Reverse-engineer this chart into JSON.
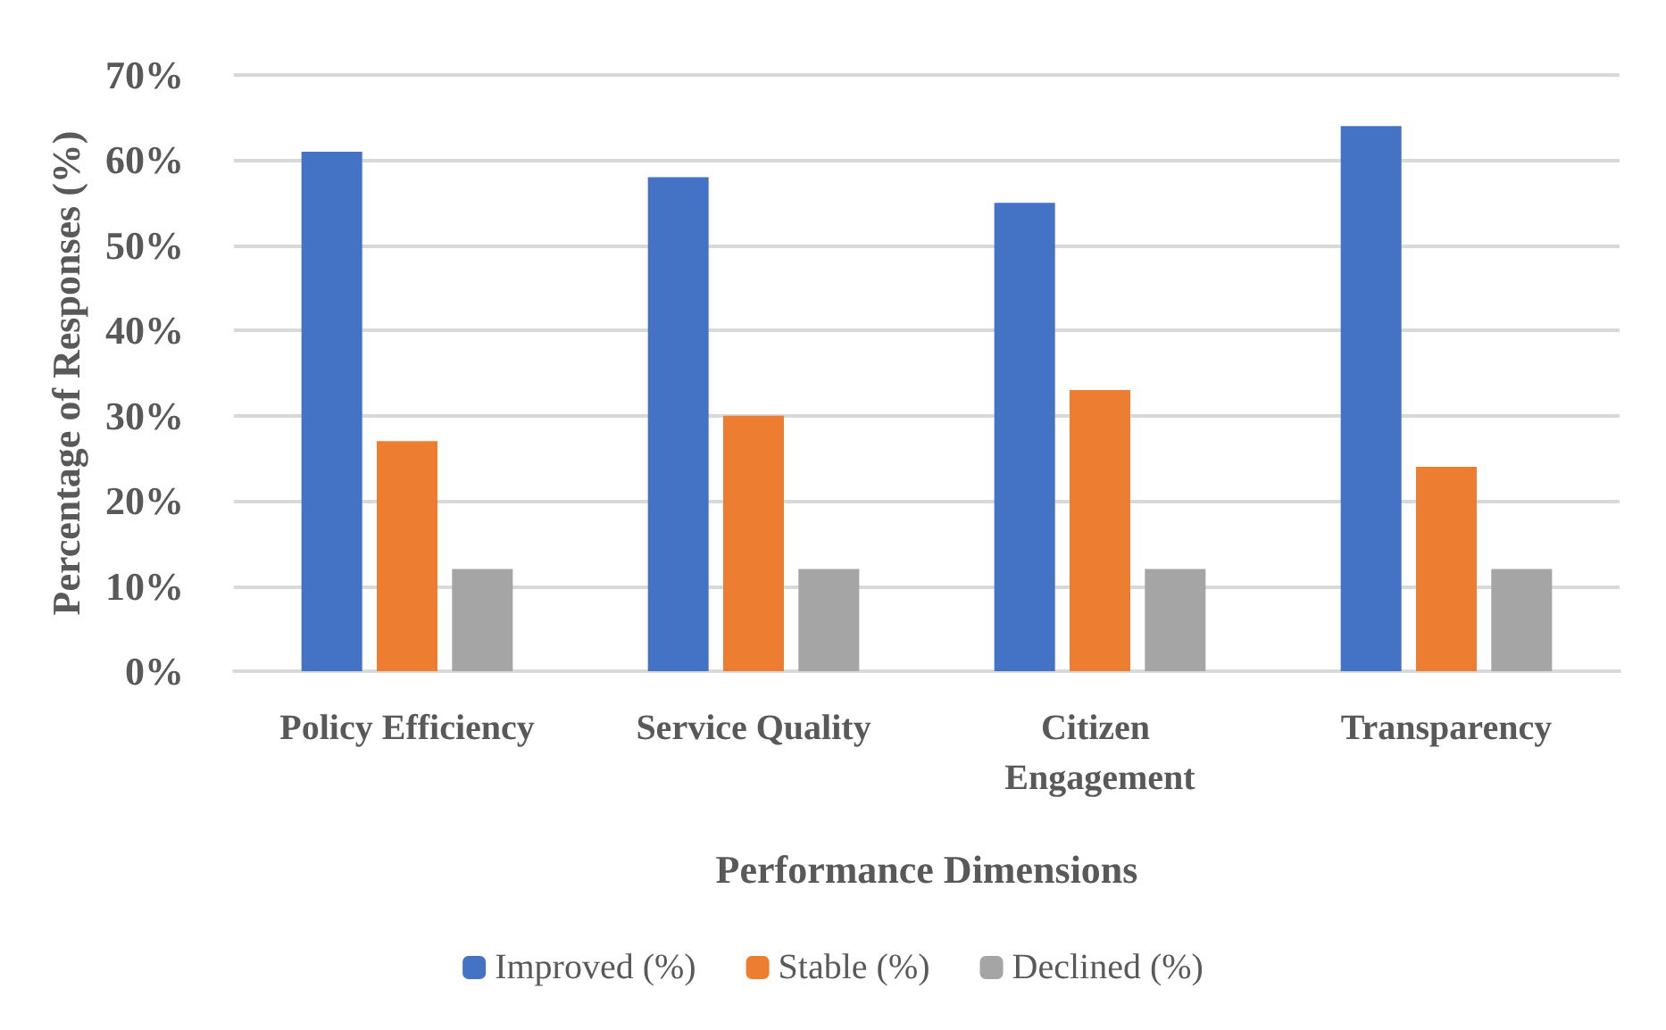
{
  "chart_data": {
    "type": "bar",
    "categories": [
      "Policy Efficiency",
      "Service Quality",
      "Citizen Engagement",
      "Transparency"
    ],
    "series": [
      {
        "name": "Improved (%)",
        "color": "#4472c4",
        "values": [
          61,
          58,
          55,
          64
        ]
      },
      {
        "name": "Stable (%)",
        "color": "#ed7d31",
        "values": [
          27,
          30,
          33,
          24
        ]
      },
      {
        "name": "Declined (%)",
        "color": "#a5a5a5",
        "values": [
          12,
          12,
          12,
          12
        ]
      }
    ],
    "xlabel": "Performance Dimensions",
    "ylabel": "Percentage of Responses (%)",
    "ylim": [
      0,
      70
    ],
    "yticks": [
      {
        "value": 0,
        "label": "0%"
      },
      {
        "value": 10,
        "label": "10%"
      },
      {
        "value": 20,
        "label": "20%"
      },
      {
        "value": 30,
        "label": "30%"
      },
      {
        "value": 40,
        "label": "40%"
      },
      {
        "value": 50,
        "label": "50%"
      },
      {
        "value": 60,
        "label": "60%"
      },
      {
        "value": 70,
        "label": "70%"
      }
    ],
    "grid": "y",
    "legend": "bottom"
  }
}
